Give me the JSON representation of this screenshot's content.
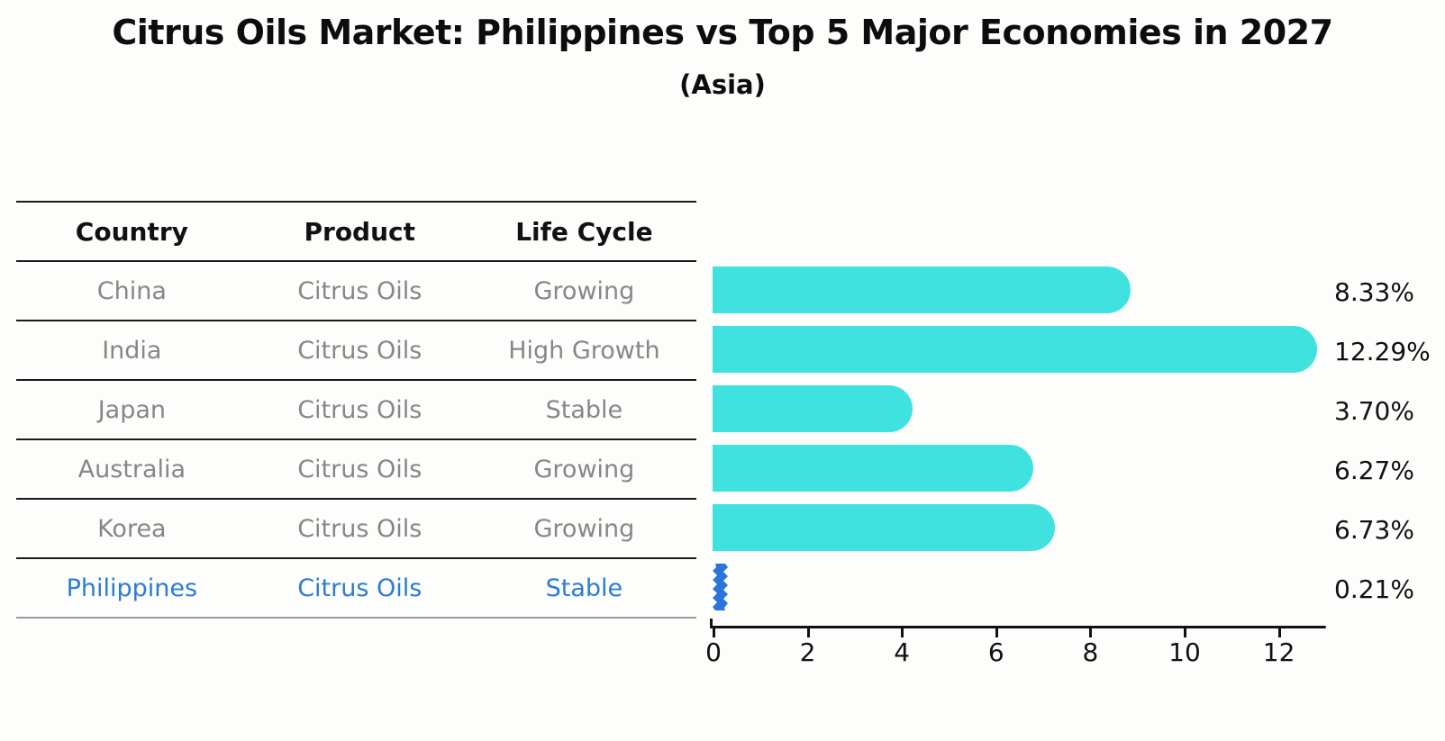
{
  "title": "Citrus Oils Market: Philippines vs Top 5 Major Economies in 2027",
  "subtitle": "(Asia)",
  "table": {
    "headers": [
      "Country",
      "Product",
      "Life Cycle"
    ],
    "rows": [
      {
        "country": "China",
        "product": "Citrus Oils",
        "life_cycle": "Growing",
        "highlight": false
      },
      {
        "country": "India",
        "product": "Citrus Oils",
        "life_cycle": "High Growth",
        "highlight": false
      },
      {
        "country": "Japan",
        "product": "Citrus Oils",
        "life_cycle": "Stable",
        "highlight": false
      },
      {
        "country": "Australia",
        "product": "Citrus Oils",
        "life_cycle": "Growing",
        "highlight": false
      },
      {
        "country": "Korea",
        "product": "Citrus Oils",
        "life_cycle": "Growing",
        "highlight": false
      },
      {
        "country": "Philippines",
        "product": "Citrus Oils",
        "life_cycle": "Stable",
        "highlight": true
      }
    ]
  },
  "chart_data": {
    "type": "bar",
    "orientation": "horizontal",
    "title": "Citrus Oils Market: Philippines vs Top 5 Major Economies in 2027",
    "subtitle": "(Asia)",
    "categories": [
      "China",
      "India",
      "Japan",
      "Australia",
      "Korea",
      "Philippines"
    ],
    "values": [
      8.33,
      12.29,
      3.7,
      6.27,
      6.73,
      0.21
    ],
    "value_labels": [
      "8.33%",
      "12.29%",
      "3.70%",
      "6.27%",
      "6.73%",
      "0.21%"
    ],
    "unit": "%",
    "xlabel": "",
    "ylabel": "",
    "xlim": [
      0,
      13
    ],
    "xticks": [
      0,
      2,
      4,
      6,
      8,
      10,
      12
    ],
    "grid": false,
    "legend": false,
    "bar_color": "#40E2E0",
    "highlight_bar_color": "#2A74DB",
    "highlight_index": 5
  },
  "colors": {
    "bar_cyan": "#40E2E0",
    "highlight_blue": "#2A74DB",
    "highlight_text": "#2B7CD3",
    "row_text": "#878787",
    "header_text": "#111111",
    "rule_dark": "#1A1A1A",
    "rule_light": "#999999"
  }
}
